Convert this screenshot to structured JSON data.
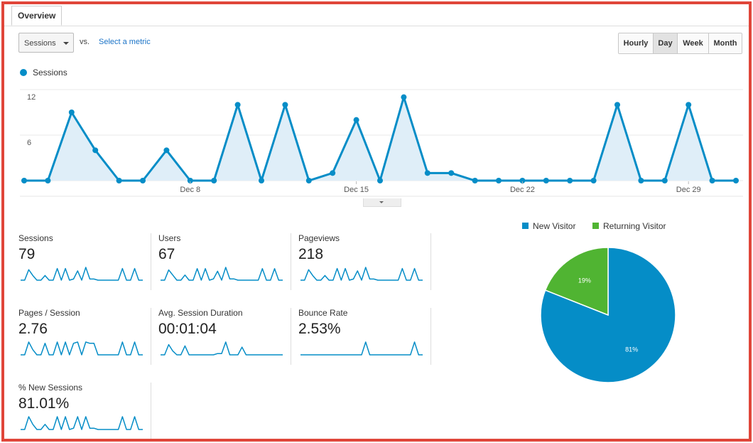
{
  "tabs": [
    {
      "label": "Overview"
    }
  ],
  "toolbar": {
    "metric_dropdown": "Sessions",
    "vs_label": "vs.",
    "select_metric_link": "Select a metric",
    "granularity_buttons": [
      {
        "label": "Hourly",
        "active": false
      },
      {
        "label": "Day",
        "active": true
      },
      {
        "label": "Week",
        "active": false
      },
      {
        "label": "Month",
        "active": false
      }
    ]
  },
  "colors": {
    "sessions": "#058dc7",
    "new_visitor": "#058dc7",
    "returning_visitor": "#50b432",
    "frame_border": "#e0463a"
  },
  "chart_data": [
    {
      "type": "area",
      "series": [
        {
          "name": "Sessions",
          "values": [
            0,
            0,
            9,
            4,
            0,
            0,
            4,
            0,
            0,
            10,
            0,
            10,
            0,
            1,
            8,
            0,
            11,
            1,
            1,
            0,
            0,
            0,
            0,
            0,
            0,
            10,
            0,
            0,
            10,
            0,
            0
          ]
        }
      ],
      "x": [
        "Dec 1",
        "Dec 2",
        "Dec 3",
        "Dec 4",
        "Dec 5",
        "Dec 6",
        "Dec 7",
        "Dec 8",
        "Dec 9",
        "Dec 10",
        "Dec 11",
        "Dec 12",
        "Dec 13",
        "Dec 14",
        "Dec 15",
        "Dec 16",
        "Dec 17",
        "Dec 18",
        "Dec 19",
        "Dec 20",
        "Dec 21",
        "Dec 22",
        "Dec 23",
        "Dec 24",
        "Dec 25",
        "Dec 26",
        "Dec 27",
        "Dec 28",
        "Dec 29",
        "Dec 30",
        "Dec 31"
      ],
      "x_tick_labels": [
        "Dec 8",
        "Dec 15",
        "Dec 22",
        "Dec 29"
      ],
      "y_ticks": [
        "12",
        "6"
      ],
      "ylim": [
        0,
        12
      ],
      "grid": true,
      "legend": "top-left"
    },
    {
      "type": "pie",
      "categories": [
        "New Visitor",
        "Returning Visitor"
      ],
      "values": [
        81,
        19
      ],
      "labels": [
        "81%",
        "19%"
      ],
      "legend": "top"
    }
  ],
  "metrics": [
    {
      "label": "Sessions",
      "value": "79",
      "spark": [
        0,
        0,
        9,
        4,
        0,
        0,
        4,
        0,
        0,
        10,
        0,
        10,
        0,
        1,
        8,
        0,
        11,
        1,
        1,
        0,
        0,
        0,
        0,
        0,
        0,
        10,
        0,
        0,
        10,
        0,
        0
      ]
    },
    {
      "label": "Users",
      "value": "67",
      "spark": [
        0,
        0,
        8,
        4,
        0,
        0,
        4,
        0,
        0,
        9,
        0,
        9,
        0,
        1,
        7,
        0,
        10,
        1,
        1,
        0,
        0,
        0,
        0,
        0,
        0,
        9,
        0,
        0,
        9,
        0,
        0
      ]
    },
    {
      "label": "Pageviews",
      "value": "218",
      "spark": [
        0,
        0,
        9,
        4,
        0,
        0,
        4,
        0,
        0,
        10,
        0,
        10,
        0,
        1,
        8,
        0,
        11,
        1,
        1,
        0,
        0,
        0,
        0,
        0,
        0,
        10,
        0,
        0,
        10,
        0,
        0
      ]
    },
    {
      "label": "Pages / Session",
      "value": "2.76",
      "spark": [
        0,
        0,
        10,
        4,
        0,
        0,
        9,
        0,
        0,
        10,
        0,
        10,
        0,
        9,
        10,
        0,
        10,
        9,
        9,
        0,
        0,
        0,
        0,
        0,
        0,
        10,
        0,
        0,
        10,
        0,
        0
      ]
    },
    {
      "label": "Avg. Session Duration",
      "value": "00:01:04",
      "spark": [
        0,
        0,
        8,
        3,
        0,
        0,
        7,
        0,
        0,
        0,
        0,
        0,
        0,
        0,
        1,
        1,
        10,
        0,
        0,
        0,
        6,
        0,
        0,
        0,
        0,
        0,
        0,
        0,
        0,
        0,
        0
      ]
    },
    {
      "label": "Bounce Rate",
      "value": "2.53%",
      "spark": [
        0,
        0,
        0,
        0,
        0,
        0,
        0,
        0,
        0,
        0,
        0,
        0,
        0,
        0,
        0,
        0,
        10,
        0,
        0,
        0,
        0,
        0,
        0,
        0,
        0,
        0,
        0,
        0,
        10,
        0,
        0
      ]
    },
    {
      "label": "% New Sessions",
      "value": "81.01%",
      "spark": [
        0,
        0,
        10,
        4,
        0,
        0,
        4,
        0,
        0,
        10,
        0,
        10,
        0,
        1,
        10,
        0,
        10,
        1,
        1,
        0,
        0,
        0,
        0,
        0,
        0,
        10,
        0,
        0,
        10,
        0,
        0
      ]
    }
  ]
}
